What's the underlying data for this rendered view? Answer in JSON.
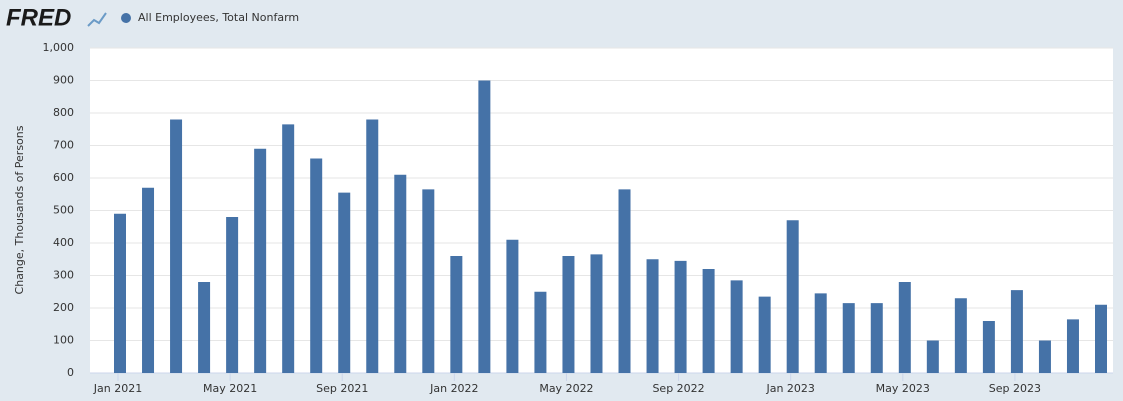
{
  "logo": "FRED",
  "chart_data": {
    "type": "bar",
    "y_label": "Change, Thousands of Persons",
    "categories": [
      "Jan 2021",
      null,
      null,
      null,
      "May 2021",
      null,
      null,
      null,
      "Sep 2021",
      null,
      null,
      null,
      "Jan 2022",
      null,
      null,
      null,
      "May 2022",
      null,
      null,
      null,
      "Sep 2022",
      null,
      null,
      null,
      "Jan 2023",
      null,
      null,
      null,
      "May 2023",
      null,
      null,
      null,
      "Sep 2023",
      null,
      null,
      null
    ],
    "series": [
      {
        "name": "All Employees, Total Nonfarm",
        "color": "#4572a7",
        "values": [
          490,
          570,
          780,
          280,
          480,
          690,
          765,
          660,
          555,
          780,
          610,
          565,
          360,
          900,
          410,
          250,
          360,
          365,
          565,
          350,
          345,
          320,
          285,
          235,
          470,
          245,
          215,
          215,
          280,
          100,
          230,
          160,
          255,
          100,
          165,
          210
        ]
      }
    ],
    "ylim": [
      0,
      1000
    ],
    "yticks": [
      0,
      100,
      200,
      300,
      400,
      500,
      600,
      700,
      800,
      900,
      {
        "value": 1000,
        "label": "1,000"
      }
    ],
    "grid": true
  }
}
